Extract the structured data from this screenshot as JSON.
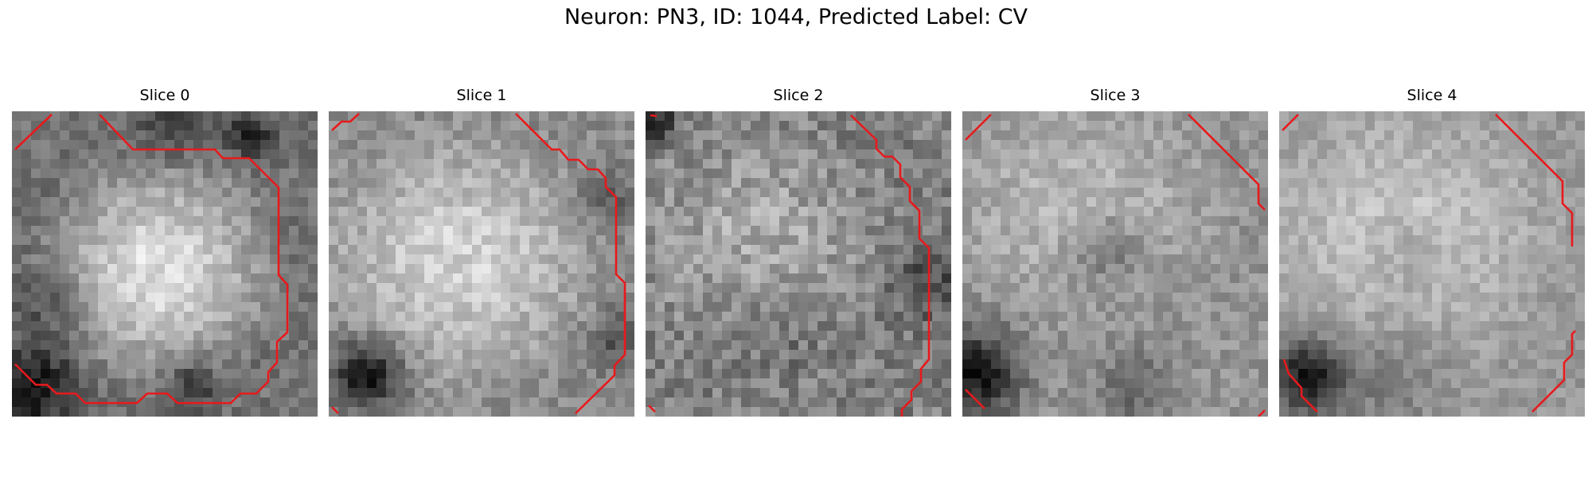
{
  "figure": {
    "title": "Neuron: PN3, ID: 1044, Predicted Label: CV"
  },
  "colors": {
    "contour": "#e8191c",
    "background": "#ffffff"
  },
  "slices": [
    {
      "label": "Slice 0"
    },
    {
      "label": "Slice 1"
    },
    {
      "label": "Slice 2"
    },
    {
      "label": "Slice 3"
    },
    {
      "label": "Slice 4"
    }
  ]
}
